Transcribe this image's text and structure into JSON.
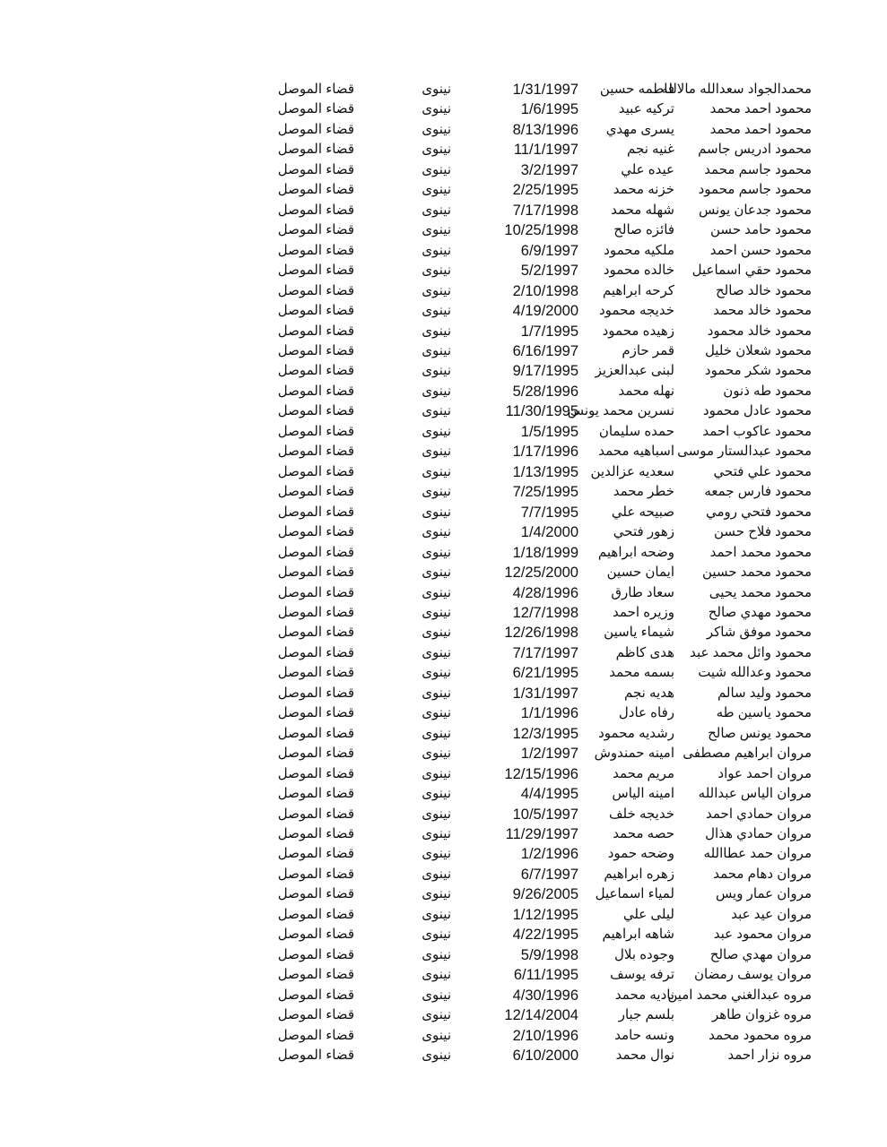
{
  "rows": [
    {
      "name": "محمدالجواد سعدالله مالالله",
      "mother": "فاطمه حسين",
      "birth_date": "1/31/1997",
      "province": "نينوى",
      "district": "قضاء الموصل"
    },
    {
      "name": "محمود احمد محمد",
      "mother": "تركيه عبيد",
      "birth_date": "1/6/1995",
      "province": "نينوى",
      "district": "قضاء الموصل"
    },
    {
      "name": "محمود احمد محمد",
      "mother": "يسرى مهدي",
      "birth_date": "8/13/1996",
      "province": "نينوى",
      "district": "قضاء الموصل"
    },
    {
      "name": "محمود ادريس جاسم",
      "mother": "غنيه نجم",
      "birth_date": "11/1/1997",
      "province": "نينوى",
      "district": "قضاء الموصل"
    },
    {
      "name": "محمود جاسم محمد",
      "mother": "عيده علي",
      "birth_date": "3/2/1997",
      "province": "نينوى",
      "district": "قضاء الموصل"
    },
    {
      "name": "محمود جاسم محمود",
      "mother": "خزنه محمد",
      "birth_date": "2/25/1995",
      "province": "نينوى",
      "district": "قضاء الموصل"
    },
    {
      "name": "محمود جدعان يونس",
      "mother": "شهله محمد",
      "birth_date": "7/17/1998",
      "province": "نينوى",
      "district": "قضاء الموصل"
    },
    {
      "name": "محمود حامد حسن",
      "mother": "فائزه صالح",
      "birth_date": "10/25/1998",
      "province": "نينوى",
      "district": "قضاء الموصل"
    },
    {
      "name": "محمود حسن احمد",
      "mother": "ملكيه محمود",
      "birth_date": "6/9/1997",
      "province": "نينوى",
      "district": "قضاء الموصل"
    },
    {
      "name": "محمود حقي اسماعيل",
      "mother": "خالده محمود",
      "birth_date": "5/2/1997",
      "province": "نينوى",
      "district": "قضاء الموصل"
    },
    {
      "name": "محمود خالد صالح",
      "mother": "كرحه ابراهيم",
      "birth_date": "2/10/1998",
      "province": "نينوى",
      "district": "قضاء الموصل"
    },
    {
      "name": "محمود خالد محمد",
      "mother": "خديجه محمود",
      "birth_date": "4/19/2000",
      "province": "نينوى",
      "district": "قضاء الموصل"
    },
    {
      "name": "محمود خالد محمود",
      "mother": "زهيده محمود",
      "birth_date": "1/7/1995",
      "province": "نينوى",
      "district": "قضاء الموصل"
    },
    {
      "name": "محمود شعلان خليل",
      "mother": "قمر حازم",
      "birth_date": "6/16/1997",
      "province": "نينوى",
      "district": "قضاء الموصل"
    },
    {
      "name": "محمود شكر محمود",
      "mother": "لبنى عبدالعزيز",
      "birth_date": "9/17/1995",
      "province": "نينوى",
      "district": "قضاء الموصل"
    },
    {
      "name": "محمود طه ذنون",
      "mother": "نهله محمد",
      "birth_date": "5/28/1996",
      "province": "نينوى",
      "district": "قضاء الموصل"
    },
    {
      "name": "محمود عادل محمود",
      "mother": "نسرين محمد يونس",
      "birth_date": "11/30/1995",
      "province": "نينوى",
      "district": "قضاء الموصل"
    },
    {
      "name": "محمود عاكوب احمد",
      "mother": "حمده سليمان",
      "birth_date": "1/5/1995",
      "province": "نينوى",
      "district": "قضاء الموصل"
    },
    {
      "name": "محمود عبدالستار موسى",
      "mother": "اسباهيه محمد",
      "birth_date": "1/17/1996",
      "province": "نينوى",
      "district": "قضاء الموصل"
    },
    {
      "name": "محمود علي فتحي",
      "mother": "سعديه عزالدين",
      "birth_date": "1/13/1995",
      "province": "نينوى",
      "district": "قضاء الموصل"
    },
    {
      "name": "محمود فارس جمعه",
      "mother": "خطر محمد",
      "birth_date": "7/25/1995",
      "province": "نينوى",
      "district": "قضاء الموصل"
    },
    {
      "name": "محمود فتحي رومي",
      "mother": "صبيحه علي",
      "birth_date": "7/7/1995",
      "province": "نينوى",
      "district": "قضاء الموصل"
    },
    {
      "name": "محمود فلاح حسن",
      "mother": "زهور فتحي",
      "birth_date": "1/4/2000",
      "province": "نينوى",
      "district": "قضاء الموصل"
    },
    {
      "name": "محمود محمد احمد",
      "mother": "وضحه ابراهيم",
      "birth_date": "1/18/1999",
      "province": "نينوى",
      "district": "قضاء الموصل"
    },
    {
      "name": "محمود محمد حسين",
      "mother": "ايمان حسين",
      "birth_date": "12/25/2000",
      "province": "نينوى",
      "district": "قضاء الموصل"
    },
    {
      "name": "محمود محمد يحيى",
      "mother": "سعاد طارق",
      "birth_date": "4/28/1996",
      "province": "نينوى",
      "district": "قضاء الموصل"
    },
    {
      "name": "محمود مهدي صالح",
      "mother": "وزيره احمد",
      "birth_date": "12/7/1998",
      "province": "نينوى",
      "district": "قضاء الموصل"
    },
    {
      "name": "محمود موفق شاكر",
      "mother": "شيماء ياسين",
      "birth_date": "12/26/1998",
      "province": "نينوى",
      "district": "قضاء الموصل"
    },
    {
      "name": "محمود وائل محمد عبد",
      "mother": "هدى كاظم",
      "birth_date": "7/17/1997",
      "province": "نينوى",
      "district": "قضاء الموصل"
    },
    {
      "name": "محمود وعدالله شيت",
      "mother": "بسمه محمد",
      "birth_date": "6/21/1995",
      "province": "نينوى",
      "district": "قضاء الموصل"
    },
    {
      "name": "محمود وليد سالم",
      "mother": "هديه نجم",
      "birth_date": "1/31/1997",
      "province": "نينوى",
      "district": "قضاء الموصل"
    },
    {
      "name": "محمود ياسين طه",
      "mother": "رفاه عادل",
      "birth_date": "1/1/1996",
      "province": "نينوى",
      "district": "قضاء الموصل"
    },
    {
      "name": "محمود يونس صالح",
      "mother": "رشديه محمود",
      "birth_date": "12/3/1995",
      "province": "نينوى",
      "district": "قضاء الموصل"
    },
    {
      "name": "مروان ابراهيم مصطفى",
      "mother": "امينه حمندوش",
      "birth_date": "1/2/1997",
      "province": "نينوى",
      "district": "قضاء الموصل"
    },
    {
      "name": "مروان احمد عواد",
      "mother": "مريم محمد",
      "birth_date": "12/15/1996",
      "province": "نينوى",
      "district": "قضاء الموصل"
    },
    {
      "name": "مروان الياس عبدالله",
      "mother": "امينه الياس",
      "birth_date": "4/4/1995",
      "province": "نينوى",
      "district": "قضاء الموصل"
    },
    {
      "name": "مروان حمادي احمد",
      "mother": "خديجه خلف",
      "birth_date": "10/5/1997",
      "province": "نينوى",
      "district": "قضاء الموصل"
    },
    {
      "name": "مروان حمادي هذال",
      "mother": "حصه محمد",
      "birth_date": "11/29/1997",
      "province": "نينوى",
      "district": "قضاء الموصل"
    },
    {
      "name": "مروان حمد عطاالله",
      "mother": "وضحه حمود",
      "birth_date": "1/2/1996",
      "province": "نينوى",
      "district": "قضاء الموصل"
    },
    {
      "name": "مروان دهام محمد",
      "mother": "زهره ابراهيم",
      "birth_date": "6/7/1997",
      "province": "نينوى",
      "district": "قضاء الموصل"
    },
    {
      "name": "مروان عمار ويس",
      "mother": "لمياء اسماعيل",
      "birth_date": "9/26/2005",
      "province": "نينوى",
      "district": "قضاء الموصل"
    },
    {
      "name": "مروان عيد عبد",
      "mother": "ليلى علي",
      "birth_date": "1/12/1995",
      "province": "نينوى",
      "district": "قضاء الموصل"
    },
    {
      "name": "مروان محمود عبد",
      "mother": "شاهه ابراهيم",
      "birth_date": "4/22/1995",
      "province": "نينوى",
      "district": "قضاء الموصل"
    },
    {
      "name": "مروان مهدي صالح",
      "mother": "وجوده بلال",
      "birth_date": "5/9/1998",
      "province": "نينوى",
      "district": "قضاء الموصل"
    },
    {
      "name": "مروان يوسف رمضان",
      "mother": "ترفه يوسف",
      "birth_date": "6/11/1995",
      "province": "نينوى",
      "district": "قضاء الموصل"
    },
    {
      "name": "مروه عبدالغني محمد امين",
      "mother": "ناديه محمد",
      "birth_date": "4/30/1996",
      "province": "نينوى",
      "district": "قضاء الموصل"
    },
    {
      "name": "مروه غزوان طاهر",
      "mother": "بلسم جبار",
      "birth_date": "12/14/2004",
      "province": "نينوى",
      "district": "قضاء الموصل"
    },
    {
      "name": "مروه محمود محمد",
      "mother": "ونسه حامد",
      "birth_date": "2/10/1996",
      "province": "نينوى",
      "district": "قضاء الموصل"
    },
    {
      "name": "مروه نزار احمد",
      "mother": "نوال محمد",
      "birth_date": "6/10/2000",
      "province": "نينوى",
      "district": "قضاء الموصل"
    }
  ]
}
